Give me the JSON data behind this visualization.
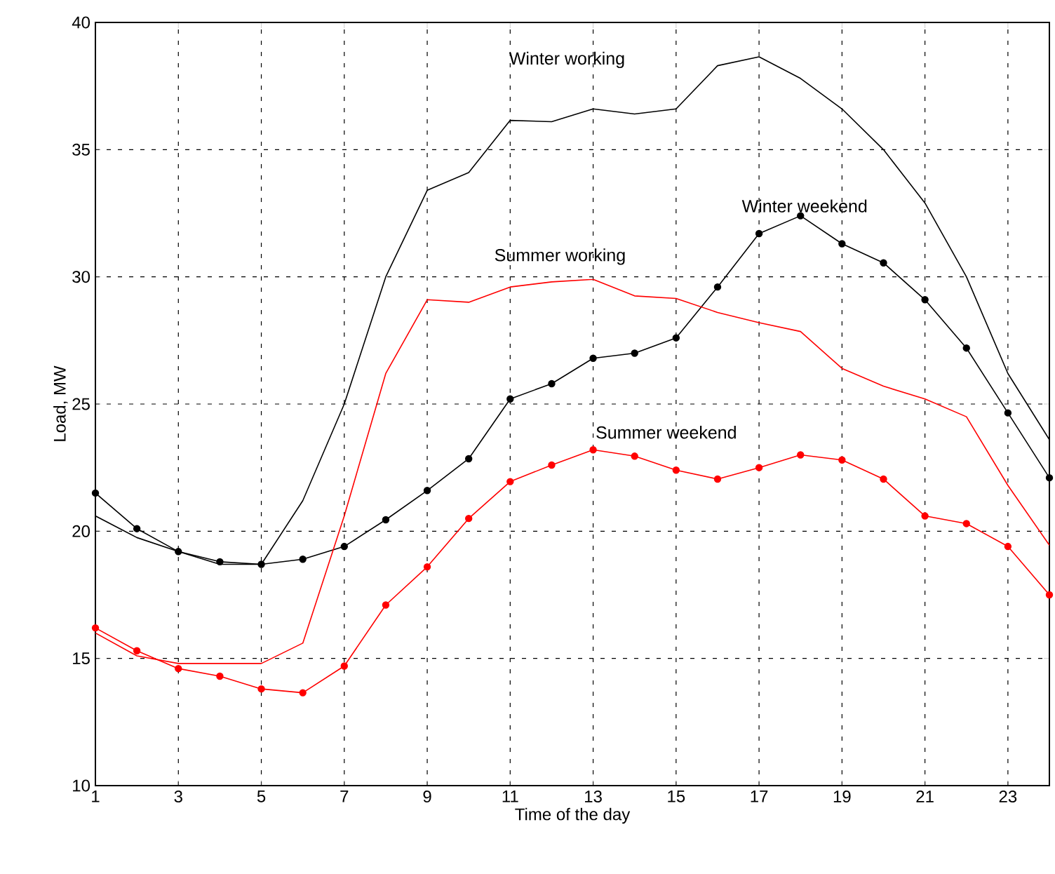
{
  "chart_data": {
    "type": "line",
    "xlabel": "Time of the day",
    "ylabel": "Load, MW",
    "x": [
      1,
      2,
      3,
      4,
      5,
      6,
      7,
      8,
      9,
      10,
      11,
      12,
      13,
      14,
      15,
      16,
      17,
      18,
      19,
      20,
      21,
      22,
      23,
      24
    ],
    "series": [
      {
        "name": "Winter working",
        "color": "#000000",
        "marker": "none",
        "values": [
          20.6,
          19.75,
          19.2,
          18.7,
          18.7,
          21.2,
          25.0,
          30.0,
          33.4,
          34.1,
          36.15,
          36.1,
          36.6,
          36.4,
          36.6,
          38.3,
          38.65,
          37.8,
          36.6,
          35.0,
          32.9,
          30.0,
          26.2,
          23.6
        ]
      },
      {
        "name": "Winter weekend",
        "color": "#000000",
        "marker": "circle",
        "values": [
          21.5,
          20.1,
          19.2,
          18.8,
          18.7,
          18.9,
          19.4,
          20.45,
          21.6,
          22.85,
          25.2,
          25.8,
          26.8,
          27.0,
          27.6,
          29.6,
          31.7,
          32.4,
          31.3,
          30.55,
          29.1,
          27.2,
          24.65,
          22.1
        ]
      },
      {
        "name": "Summer working",
        "color": "#ff0000",
        "marker": "none",
        "values": [
          16.0,
          15.1,
          14.8,
          14.8,
          14.8,
          15.6,
          20.6,
          26.2,
          29.1,
          29.0,
          29.6,
          29.8,
          29.9,
          29.25,
          29.15,
          28.6,
          28.2,
          27.85,
          26.4,
          25.7,
          25.2,
          24.5,
          21.8,
          19.45
        ]
      },
      {
        "name": "Summer weekend",
        "color": "#ff0000",
        "marker": "circle",
        "values": [
          16.2,
          15.3,
          14.6,
          14.3,
          13.8,
          13.65,
          14.7,
          17.1,
          18.6,
          20.5,
          21.95,
          22.6,
          23.2,
          22.95,
          22.4,
          22.05,
          22.5,
          23.0,
          22.8,
          22.05,
          20.6,
          20.3,
          19.4,
          17.5
        ]
      }
    ],
    "xlim": [
      1,
      24
    ],
    "ylim": [
      10,
      40
    ],
    "xticks": [
      1,
      3,
      5,
      7,
      9,
      11,
      13,
      15,
      17,
      19,
      21,
      23
    ],
    "yticks": [
      10,
      15,
      20,
      25,
      30,
      35,
      40
    ],
    "grid": true,
    "line_style": "solid"
  }
}
